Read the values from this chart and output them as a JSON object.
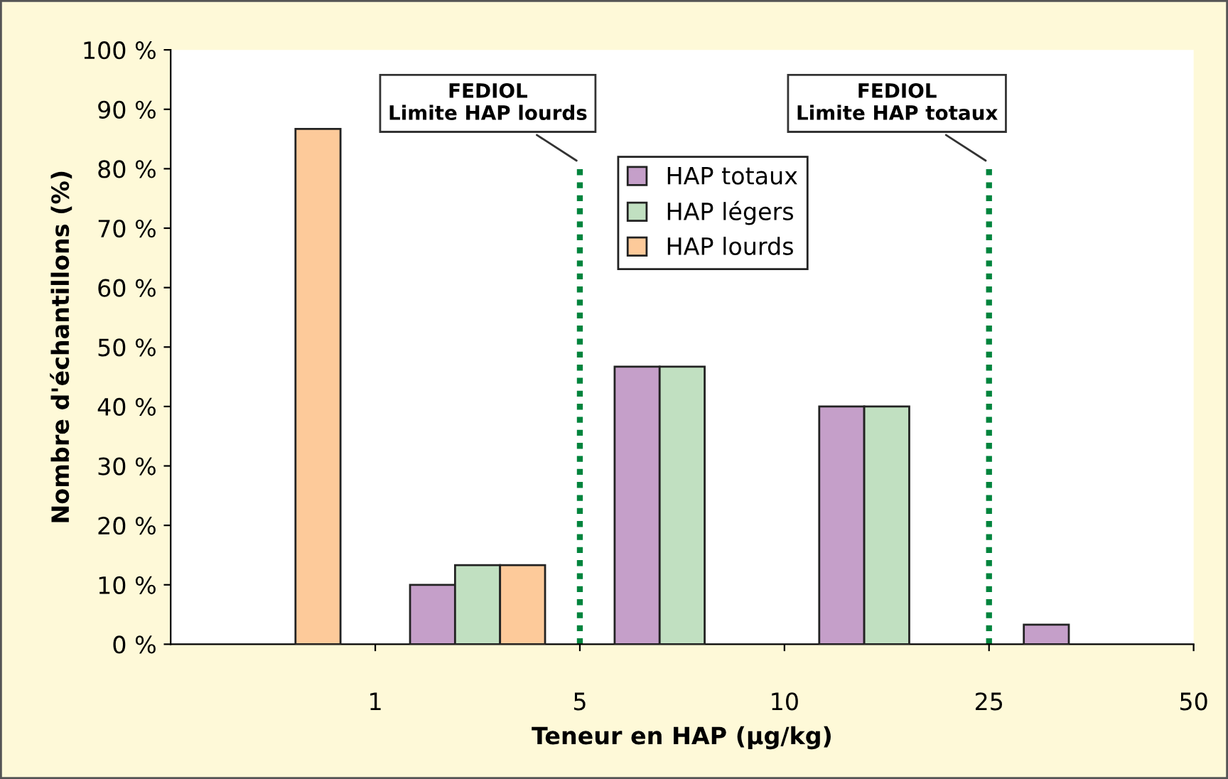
{
  "chart_data": {
    "type": "bar",
    "xlabel": "Teneur en HAP (µg/kg)",
    "ylabel": "Nombre d'échantillons (%)",
    "categories": [
      null,
      null,
      null,
      null,
      null
    ],
    "annotations": [
      "1",
      "5",
      "10",
      "25",
      "50",
      "FEDIOL\nLimite HAP lourds",
      "FEDIOL\nLimite HAP totaux"
    ],
    "ylim": [
      0,
      100
    ],
    "yticks": [
      {
        "value": 0,
        "label": "0 %"
      },
      {
        "value": 10,
        "label": "10 %"
      },
      {
        "value": 20,
        "label": "20 %"
      },
      {
        "value": 30,
        "label": "30 %"
      },
      {
        "value": 40,
        "label": "40 %"
      },
      {
        "value": 50,
        "label": "50 %"
      },
      {
        "value": 60,
        "label": "60 %"
      },
      {
        "value": 70,
        "label": "70 %"
      },
      {
        "value": 80,
        "label": "80 %"
      },
      {
        "value": 90,
        "label": "90 %"
      },
      {
        "value": 100,
        "label": "100 %"
      }
    ],
    "series": [
      {
        "name": "HAP totaux",
        "color": "#c59fc9",
        "values": [
          null,
          10,
          46.7,
          40,
          3.3
        ]
      },
      {
        "name": "HAP légers",
        "color": "#c1e0c1",
        "values": [
          null,
          13.3,
          46.7,
          40,
          null
        ]
      },
      {
        "name": "HAP lourds",
        "color": "#fdca9a",
        "values": [
          86.7,
          13.3,
          null,
          null,
          null
        ]
      }
    ],
    "grid": false,
    "legend": "top"
  }
}
